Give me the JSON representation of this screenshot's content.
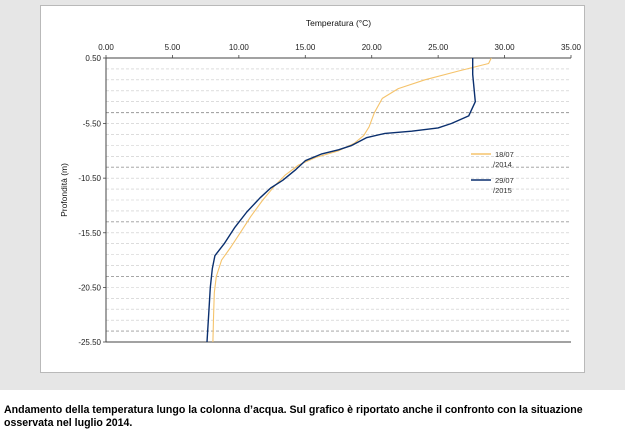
{
  "caption": "Andamento della temperatura lungo la colonna d’acqua. Sul grafico è riportato anche il confronto con la situazione osservata nel luglio 2014.",
  "chart_data": {
    "type": "line",
    "title": "",
    "xlabel": "Temperatura (°C)",
    "ylabel": "Profondità (m)",
    "xlim": [
      0,
      35
    ],
    "ylim": [
      -25.5,
      0.5
    ],
    "x_ticks": [
      0,
      5,
      10,
      15,
      20,
      25,
      30,
      35
    ],
    "x_tick_labels": [
      "0.00",
      "5.00",
      "10.00",
      "15.00",
      "20.00",
      "25.00",
      "30.00",
      "35.00"
    ],
    "y_ticks": [
      0.5,
      -5.5,
      -10.5,
      -15.5,
      -20.5,
      -25.5
    ],
    "y_tick_labels": [
      "0.50",
      "-5.50",
      "-10.50",
      "-15.50",
      "-20.50",
      "-25.50"
    ],
    "x_axis_position": "top",
    "grid": true,
    "legend_position": "right",
    "series": [
      {
        "name": "18/07 /2014",
        "color": "#f5c36b",
        "points": [
          [
            29.0,
            0.5
          ],
          [
            28.8,
            0.0
          ],
          [
            26.5,
            -0.7
          ],
          [
            24.0,
            -1.5
          ],
          [
            22.0,
            -2.3
          ],
          [
            20.8,
            -3.2
          ],
          [
            20.2,
            -4.5
          ],
          [
            19.8,
            -5.8
          ],
          [
            19.4,
            -6.6
          ],
          [
            18.7,
            -7.3
          ],
          [
            17.5,
            -8.0
          ],
          [
            15.8,
            -8.6
          ],
          [
            14.5,
            -9.3
          ],
          [
            13.5,
            -10.2
          ],
          [
            12.7,
            -11.2
          ],
          [
            11.8,
            -12.5
          ],
          [
            10.9,
            -14.0
          ],
          [
            10.1,
            -15.5
          ],
          [
            9.4,
            -16.8
          ],
          [
            8.7,
            -18.0
          ],
          [
            8.3,
            -19.5
          ],
          [
            8.15,
            -21.0
          ],
          [
            8.1,
            -23.0
          ],
          [
            8.05,
            -25.5
          ]
        ]
      },
      {
        "name": "29/07 /2015",
        "color": "#0a2f6e",
        "points": [
          [
            27.6,
            0.5
          ],
          [
            27.6,
            -1.0
          ],
          [
            27.8,
            -3.5
          ],
          [
            27.3,
            -4.8
          ],
          [
            26.0,
            -5.5
          ],
          [
            25.0,
            -5.9
          ],
          [
            23.0,
            -6.2
          ],
          [
            21.0,
            -6.4
          ],
          [
            19.6,
            -6.8
          ],
          [
            18.5,
            -7.5
          ],
          [
            17.5,
            -7.9
          ],
          [
            16.2,
            -8.3
          ],
          [
            15.0,
            -8.9
          ],
          [
            14.3,
            -9.7
          ],
          [
            13.3,
            -10.7
          ],
          [
            12.4,
            -11.4
          ],
          [
            11.6,
            -12.3
          ],
          [
            10.6,
            -13.6
          ],
          [
            9.7,
            -15.0
          ],
          [
            8.9,
            -16.5
          ],
          [
            8.2,
            -17.6
          ],
          [
            8.0,
            -18.8
          ],
          [
            7.85,
            -20.5
          ],
          [
            7.75,
            -22.5
          ],
          [
            7.6,
            -25.5
          ]
        ]
      }
    ]
  }
}
